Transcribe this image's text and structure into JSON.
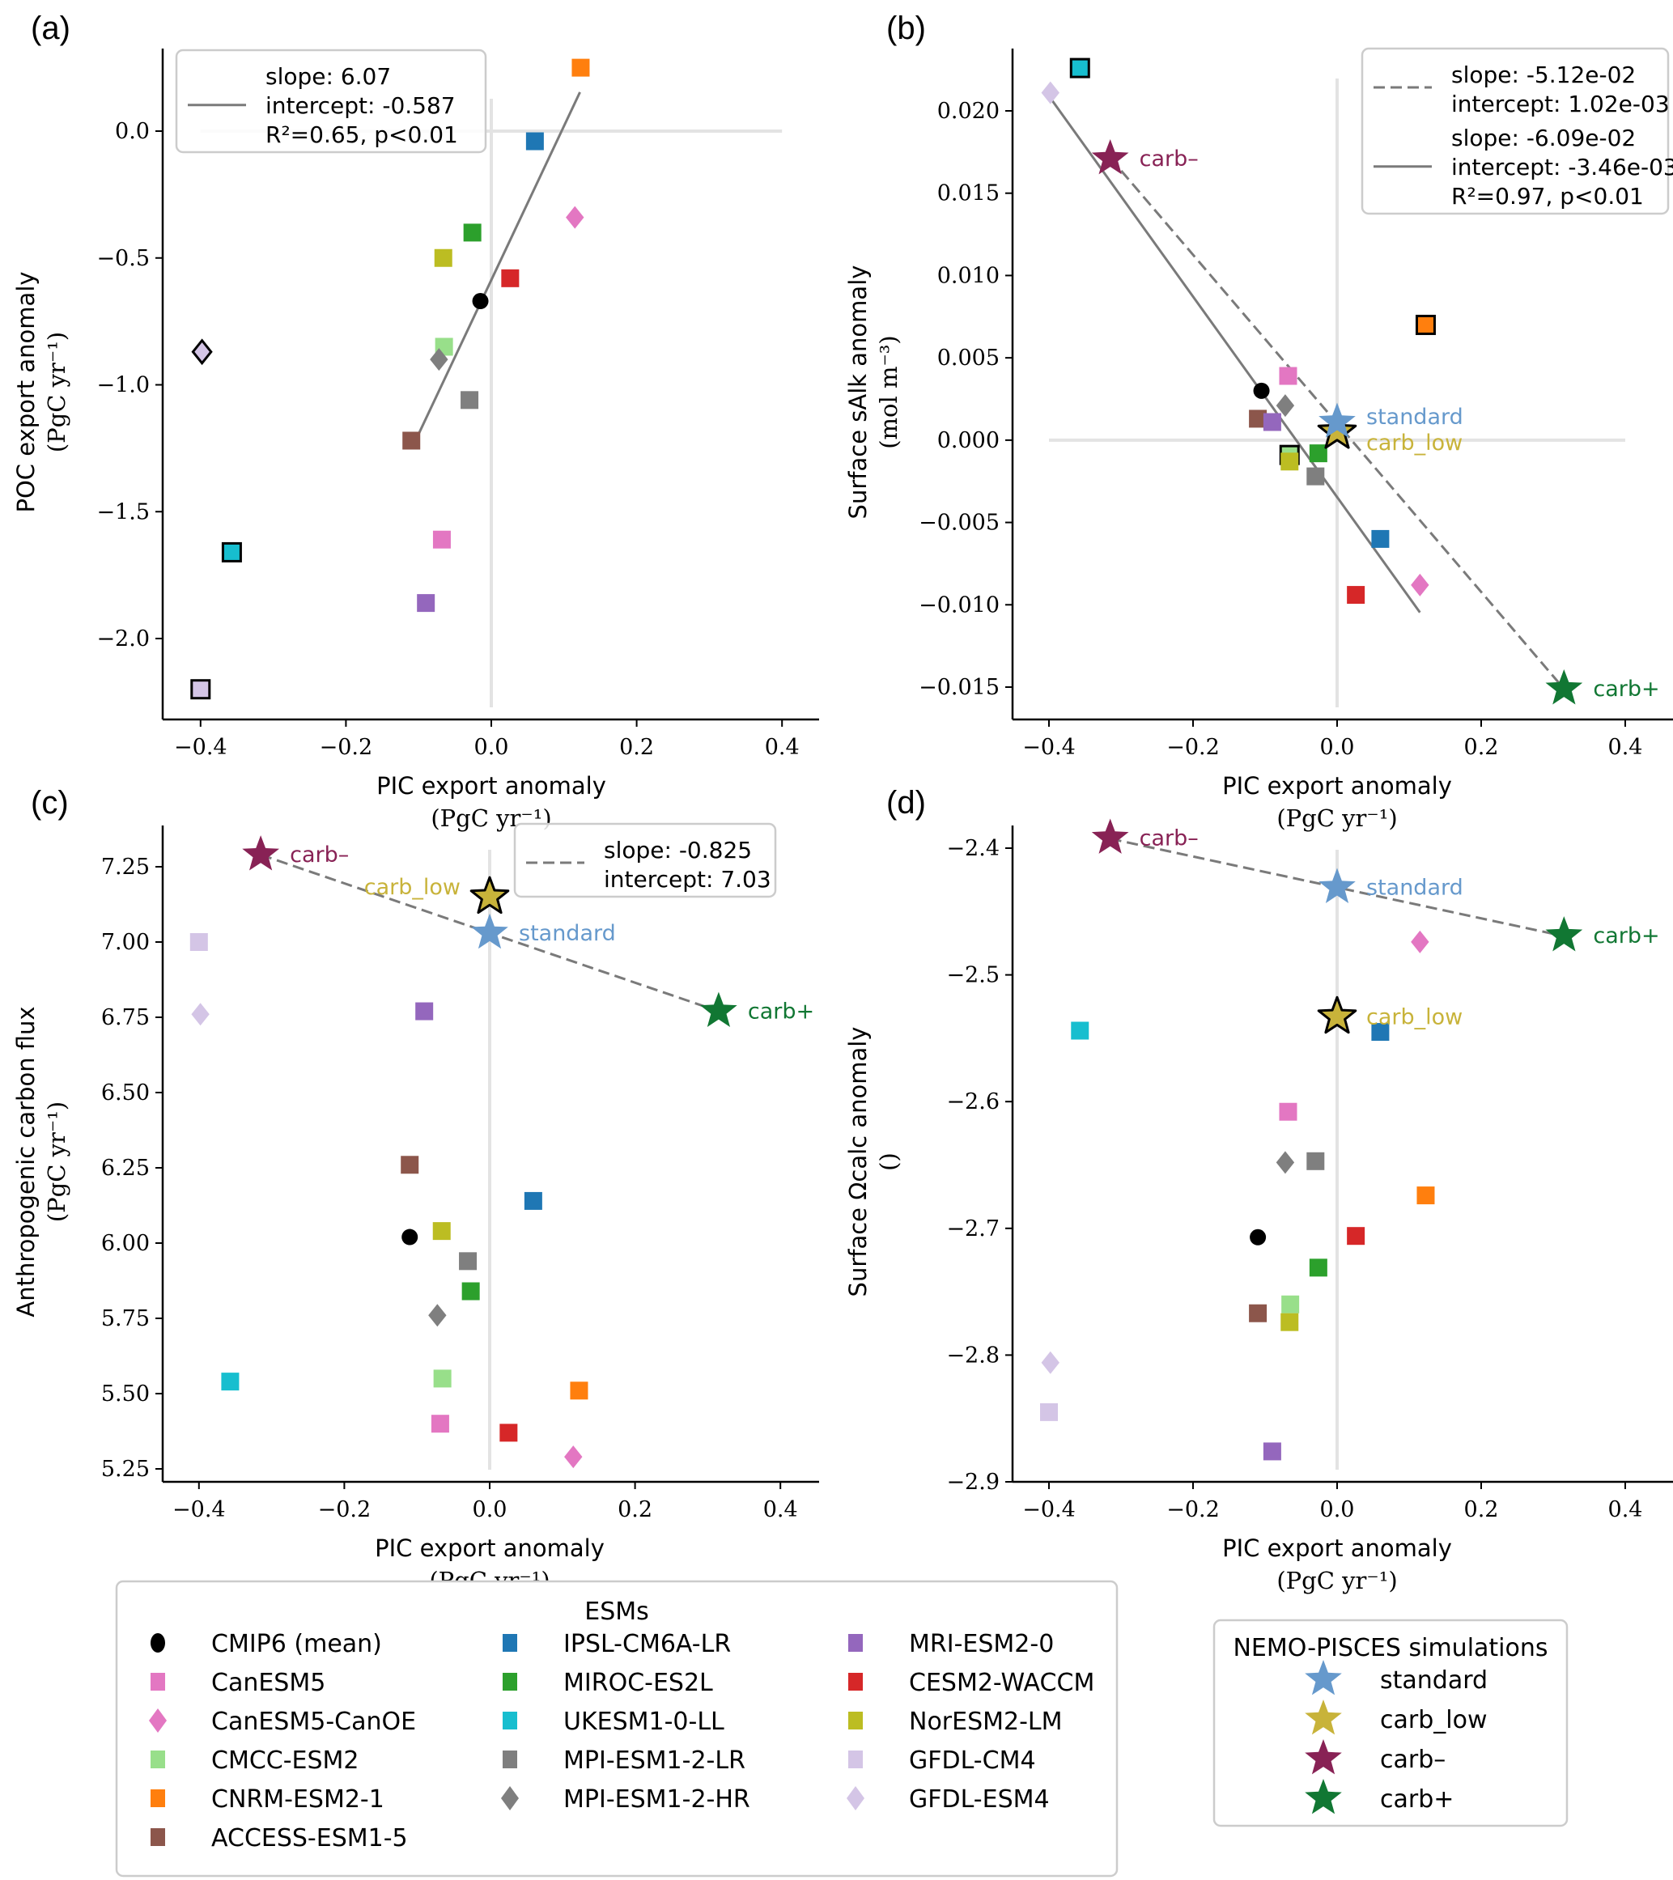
{
  "chart_data": {
    "type": "scatter",
    "x_common": {
      "xlabel": "PIC export anomaly",
      "xunit": "(PgC yr⁻¹)",
      "xlim": [
        -0.45,
        0.45
      ],
      "xticks": [
        -0.4,
        -0.2,
        0.0,
        0.2,
        0.4
      ],
      "xtick_labels": [
        "−0.4",
        "−0.2",
        "0.0",
        "0.2",
        "0.4"
      ]
    },
    "models": [
      {
        "name": "CMIP6 (mean)",
        "color": "#000000",
        "marker": "circle"
      },
      {
        "name": "CanESM5",
        "color": "#e377c2",
        "marker": "square"
      },
      {
        "name": "CanESM5-CanOE",
        "color": "#e377c2",
        "marker": "diamond"
      },
      {
        "name": "CMCC-ESM2",
        "color": "#98df8a",
        "marker": "square"
      },
      {
        "name": "CNRM-ESM2-1",
        "color": "#ff7f0e",
        "marker": "square"
      },
      {
        "name": "ACCESS-ESM1-5",
        "color": "#8c564b",
        "marker": "square"
      },
      {
        "name": "IPSL-CM6A-LR",
        "color": "#1f77b4",
        "marker": "square"
      },
      {
        "name": "MIROC-ES2L",
        "color": "#2ca02c",
        "marker": "square"
      },
      {
        "name": "UKESM1-0-LL",
        "color": "#17becf",
        "marker": "square"
      },
      {
        "name": "MPI-ESM1-2-LR",
        "color": "#7f7f7f",
        "marker": "square"
      },
      {
        "name": "MPI-ESM1-2-HR",
        "color": "#7f7f7f",
        "marker": "diamond"
      },
      {
        "name": "MRI-ESM2-0",
        "color": "#9467bd",
        "marker": "square"
      },
      {
        "name": "CESM2-WACCM",
        "color": "#d62728",
        "marker": "square"
      },
      {
        "name": "NorESM2-LM",
        "color": "#bcbd22",
        "marker": "square"
      },
      {
        "name": "GFDL-CM4",
        "color": "#d4c5e6",
        "marker": "square"
      },
      {
        "name": "GFDL-ESM4",
        "color": "#d4c5e6",
        "marker": "diamond"
      }
    ],
    "simulations": [
      {
        "name": "standard",
        "color": "#6699cc"
      },
      {
        "name": "carb_low",
        "color": "#c8b33a"
      },
      {
        "name": "carb–",
        "color": "#882255"
      },
      {
        "name": "carb+",
        "color": "#117733"
      }
    ],
    "panels": [
      {
        "id": "a",
        "label": "(a)",
        "ylabel": "POC export anomaly",
        "yunit": "(PgC yr⁻¹)",
        "ylim": [
          -2.28,
          0.3
        ],
        "yticks": [
          0.0,
          -0.5,
          -1.0,
          -1.5,
          -2.0
        ],
        "ytick_labels": [
          "0.0",
          "−0.5",
          "−1.0",
          "−1.5",
          "−2.0"
        ],
        "points": [
          {
            "model": "CMIP6 (mean)",
            "x": -0.015,
            "y": -0.67
          },
          {
            "model": "CanESM5",
            "x": -0.068,
            "y": -1.61
          },
          {
            "model": "CanESM5-CanOE",
            "x": 0.115,
            "y": -0.34
          },
          {
            "model": "CMCC-ESM2",
            "x": -0.065,
            "y": -0.85
          },
          {
            "model": "CNRM-ESM2-1",
            "x": 0.123,
            "y": 0.25
          },
          {
            "model": "ACCESS-ESM1-5",
            "x": -0.11,
            "y": -1.22
          },
          {
            "model": "IPSL-CM6A-LR",
            "x": 0.06,
            "y": -0.04
          },
          {
            "model": "MIROC-ES2L",
            "x": -0.026,
            "y": -0.4
          },
          {
            "model": "UKESM1-0-LL",
            "x": -0.357,
            "y": -1.66,
            "edge": true
          },
          {
            "model": "MPI-ESM1-2-LR",
            "x": -0.03,
            "y": -1.06
          },
          {
            "model": "MPI-ESM1-2-HR",
            "x": -0.072,
            "y": -0.9
          },
          {
            "model": "MRI-ESM2-0",
            "x": -0.09,
            "y": -1.86
          },
          {
            "model": "CESM2-WACCM",
            "x": 0.026,
            "y": -0.58
          },
          {
            "model": "NorESM2-LM",
            "x": -0.066,
            "y": -0.5
          },
          {
            "model": "GFDL-CM4",
            "x": -0.4,
            "y": -2.2,
            "edge": true
          },
          {
            "model": "GFDL-ESM4",
            "x": -0.398,
            "y": -0.87,
            "edge": true
          }
        ],
        "sims": [],
        "fits": [
          {
            "style": "solid",
            "x": [
              -0.1,
              0.122
            ],
            "slope": 6.07,
            "intercept": -0.587,
            "legend": [
              "slope:  6.07",
              "intercept:  -0.587",
              "R²=0.65, p<0.01"
            ]
          }
        ],
        "legend_loc": "upper-left"
      },
      {
        "id": "b",
        "label": "(b)",
        "ylabel": "Surface sAlk anomaly",
        "yunit": "(mol m⁻³)",
        "ylim": [
          -0.0165,
          0.0245
        ],
        "yticks": [
          0.02,
          0.015,
          0.01,
          0.005,
          0.0,
          -0.005,
          -0.01,
          -0.015
        ],
        "ytick_labels": [
          "0.020",
          "0.015",
          "0.010",
          "0.005",
          "0.000",
          "−0.005",
          "−0.010",
          "−0.015"
        ],
        "points": [
          {
            "model": "CMCC-ESM2",
            "x": -0.066,
            "y": -0.0009,
            "edge": true
          },
          {
            "model": "CMIP6 (mean)",
            "x": -0.105,
            "y": 0.003
          },
          {
            "model": "CanESM5",
            "x": -0.068,
            "y": 0.0039
          },
          {
            "model": "CanESM5-CanOE",
            "x": 0.115,
            "y": -0.0088
          },
          {
            "model": "CNRM-ESM2-1",
            "x": 0.123,
            "y": 0.007,
            "edge": true
          },
          {
            "model": "ACCESS-ESM1-5",
            "x": -0.11,
            "y": 0.0013
          },
          {
            "model": "IPSL-CM6A-LR",
            "x": 0.06,
            "y": -0.006
          },
          {
            "model": "MIROC-ES2L",
            "x": -0.026,
            "y": -0.0008
          },
          {
            "model": "UKESM1-0-LL",
            "x": -0.357,
            "y": 0.0226,
            "edge": true
          },
          {
            "model": "MPI-ESM1-2-LR",
            "x": -0.03,
            "y": -0.0022
          },
          {
            "model": "MPI-ESM1-2-HR",
            "x": -0.072,
            "y": 0.0021
          },
          {
            "model": "MRI-ESM2-0",
            "x": -0.09,
            "y": 0.0011
          },
          {
            "model": "CESM2-WACCM",
            "x": 0.026,
            "y": -0.0094
          },
          {
            "model": "NorESM2-LM",
            "x": -0.066,
            "y": -0.0013
          },
          {
            "model": "GFDL-ESM4",
            "x": -0.398,
            "y": 0.0211
          }
        ],
        "sims": [
          {
            "name": "carb_low",
            "x": 0.0,
            "y": 0.0005,
            "edge": true,
            "label_dx": 1,
            "label_dy": 0.6
          },
          {
            "name": "standard",
            "x": 0.0,
            "y": 0.0011,
            "label_dx": 1,
            "label_dy": -0.3
          },
          {
            "name": "carb–",
            "x": -0.315,
            "y": 0.0171,
            "label_dx": 1,
            "label_dy": 0
          },
          {
            "name": "carb+",
            "x": 0.315,
            "y": -0.0151,
            "label_dx": 1,
            "label_dy": 0
          }
        ],
        "fits": [
          {
            "style": "dashed",
            "x": [
              -0.315,
              0.315
            ],
            "slope": -0.0512,
            "intercept": 0.00102,
            "legend": [
              "slope:  -5.12e-02",
              "intercept:  1.02e-03"
            ]
          },
          {
            "style": "solid",
            "x": [
              -0.398,
              0.115
            ],
            "slope": -0.0609,
            "intercept": -0.00346,
            "legend": [
              "slope:  -6.09e-02",
              "intercept:  -3.46e-03",
              "R²=0.97, p<0.01"
            ]
          }
        ],
        "legend_loc": "upper-right"
      },
      {
        "id": "c",
        "label": "(c)",
        "ylabel": "Anthropogenic carbon flux",
        "yunit": "(PgC yr⁻¹)",
        "ylim": [
          5.22,
          7.42
        ],
        "yticks": [
          7.25,
          7.0,
          6.75,
          6.5,
          6.25,
          6.0,
          5.75,
          5.5,
          5.25
        ],
        "ytick_labels": [
          "7.25",
          "7.00",
          "6.75",
          "6.50",
          "6.25",
          "6.00",
          "5.75",
          "5.50",
          "5.25"
        ],
        "points": [
          {
            "model": "CMIP6 (mean)",
            "x": -0.11,
            "y": 6.02
          },
          {
            "model": "CanESM5",
            "x": -0.068,
            "y": 5.4
          },
          {
            "model": "CanESM5-CanOE",
            "x": 0.115,
            "y": 5.29
          },
          {
            "model": "CMCC-ESM2",
            "x": -0.065,
            "y": 5.55
          },
          {
            "model": "CNRM-ESM2-1",
            "x": 0.123,
            "y": 5.51
          },
          {
            "model": "ACCESS-ESM1-5",
            "x": -0.11,
            "y": 6.26
          },
          {
            "model": "IPSL-CM6A-LR",
            "x": 0.06,
            "y": 6.14
          },
          {
            "model": "MIROC-ES2L",
            "x": -0.026,
            "y": 5.84
          },
          {
            "model": "UKESM1-0-LL",
            "x": -0.357,
            "y": 5.54
          },
          {
            "model": "MPI-ESM1-2-LR",
            "x": -0.03,
            "y": 5.94
          },
          {
            "model": "MPI-ESM1-2-HR",
            "x": -0.072,
            "y": 5.76
          },
          {
            "model": "MRI-ESM2-0",
            "x": -0.09,
            "y": 6.77
          },
          {
            "model": "CESM2-WACCM",
            "x": 0.026,
            "y": 5.37
          },
          {
            "model": "NorESM2-LM",
            "x": -0.066,
            "y": 6.04
          },
          {
            "model": "GFDL-CM4",
            "x": -0.4,
            "y": 7.0
          },
          {
            "model": "GFDL-ESM4",
            "x": -0.398,
            "y": 6.76
          }
        ],
        "sims": [
          {
            "name": "carb_low",
            "x": 0.0,
            "y": 7.15,
            "edge": true,
            "label_side": "left"
          },
          {
            "name": "standard",
            "x": 0.0,
            "y": 7.03,
            "label_dx": 1,
            "label_dy": 0
          },
          {
            "name": "carb–",
            "x": -0.315,
            "y": 7.29,
            "label_dx": 1,
            "label_dy": 0
          },
          {
            "name": "carb+",
            "x": 0.315,
            "y": 6.77,
            "label_dx": 1,
            "label_dy": 0
          }
        ],
        "fits": [
          {
            "style": "dashed",
            "x": [
              -0.315,
              0.315
            ],
            "slope": -0.825,
            "intercept": 7.03,
            "legend": [
              "slope:  -0.825",
              "intercept:  7.03"
            ]
          }
        ],
        "legend_loc": "upper-right"
      },
      {
        "id": "d",
        "label": "(d)",
        "ylabel": "Surface Ωcalc anomaly",
        "yunit": "()",
        "ylim": [
          -2.9,
          -2.367
        ],
        "yticks": [
          -2.4,
          -2.5,
          -2.6,
          -2.7,
          -2.8,
          -2.9
        ],
        "ytick_labels": [
          "−2.4",
          "−2.5",
          "−2.6",
          "−2.7",
          "−2.8",
          "−2.9"
        ],
        "points": [
          {
            "model": "CMIP6 (mean)",
            "x": -0.11,
            "y": -2.707
          },
          {
            "model": "CanESM5",
            "x": -0.068,
            "y": -2.608
          },
          {
            "model": "CanESM5-CanOE",
            "x": 0.115,
            "y": -2.474
          },
          {
            "model": "CMCC-ESM2",
            "x": -0.065,
            "y": -2.76
          },
          {
            "model": "CNRM-ESM2-1",
            "x": 0.123,
            "y": -2.674
          },
          {
            "model": "ACCESS-ESM1-5",
            "x": -0.11,
            "y": -2.767
          },
          {
            "model": "IPSL-CM6A-LR",
            "x": 0.06,
            "y": -2.545
          },
          {
            "model": "MIROC-ES2L",
            "x": -0.026,
            "y": -2.731
          },
          {
            "model": "UKESM1-0-LL",
            "x": -0.357,
            "y": -2.544
          },
          {
            "model": "MPI-ESM1-2-LR",
            "x": -0.03,
            "y": -2.647
          },
          {
            "model": "MPI-ESM1-2-HR",
            "x": -0.072,
            "y": -2.648
          },
          {
            "model": "MRI-ESM2-0",
            "x": -0.09,
            "y": -2.876
          },
          {
            "model": "CESM2-WACCM",
            "x": 0.026,
            "y": -2.706
          },
          {
            "model": "NorESM2-LM",
            "x": -0.066,
            "y": -2.774
          },
          {
            "model": "GFDL-CM4",
            "x": -0.4,
            "y": -2.845
          },
          {
            "model": "GFDL-ESM4",
            "x": -0.398,
            "y": -2.806
          }
        ],
        "sims": [
          {
            "name": "carb_low",
            "x": 0.0,
            "y": -2.533,
            "edge": true,
            "label_dx": 1,
            "label_dy": 0
          },
          {
            "name": "standard",
            "x": 0.0,
            "y": -2.431,
            "label_dx": 1,
            "label_dy": 0
          },
          {
            "name": "carb–",
            "x": -0.315,
            "y": -2.392,
            "label_dx": 1,
            "label_dy": 0
          },
          {
            "name": "carb+",
            "x": 0.315,
            "y": -2.469,
            "label_dx": 1,
            "label_dy": 0
          }
        ],
        "fits": [
          {
            "style": "dashed",
            "x": [
              -0.315,
              0.315
            ],
            "slope": -0.122,
            "intercept": -2.431,
            "legend": []
          }
        ],
        "legend_loc": "none"
      }
    ],
    "legends": {
      "esm_title": "ESMs",
      "sim_title": "NEMO-PISCES simulations"
    }
  }
}
